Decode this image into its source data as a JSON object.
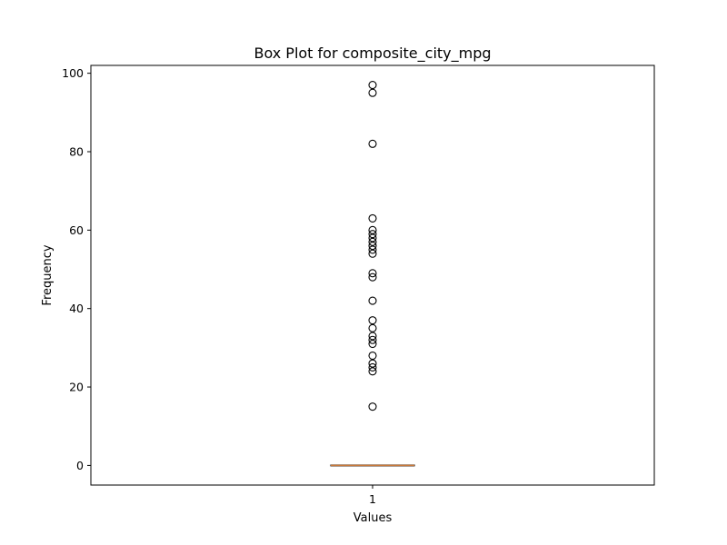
{
  "chart_data": {
    "type": "box",
    "title": "Box Plot for composite_city_mpg",
    "xlabel": "Values",
    "ylabel": "Frequency",
    "categories": [
      "1"
    ],
    "ylim": [
      -5,
      102
    ],
    "yticks": [
      0,
      20,
      40,
      60,
      80,
      100
    ],
    "box": {
      "q1": 0,
      "median": 0,
      "q3": 0,
      "whisker_low": 0,
      "whisker_high": 0
    },
    "outliers": [
      15,
      24,
      25,
      26,
      28,
      31,
      32,
      33,
      35,
      37,
      42,
      48,
      49,
      54,
      55,
      56,
      57,
      58,
      59,
      60,
      63,
      82,
      95,
      97
    ],
    "colors": {
      "box": "#000000",
      "median": "#c9793a",
      "outlier": "#000000"
    }
  }
}
